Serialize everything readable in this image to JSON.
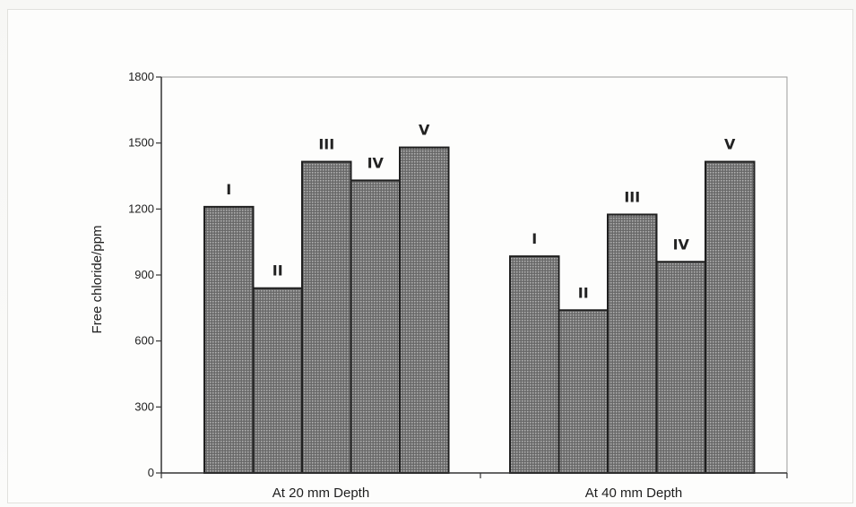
{
  "chart_data": {
    "type": "bar",
    "ylabel": "Free chloride/ppm",
    "xlabel": "",
    "ylim": [
      0,
      1800
    ],
    "yticks": [
      0,
      300,
      600,
      900,
      1200,
      1500,
      1800
    ],
    "grid": false,
    "categories": [
      "At 20 mm Depth",
      "At 40 mm Depth"
    ],
    "series": [
      {
        "name": "I",
        "values": [
          1210,
          985
        ]
      },
      {
        "name": "II",
        "values": [
          840,
          740
        ]
      },
      {
        "name": "III",
        "values": [
          1415,
          1175
        ]
      },
      {
        "name": "IV",
        "values": [
          1330,
          960
        ]
      },
      {
        "name": "V",
        "values": [
          1480,
          1415
        ]
      }
    ],
    "colors": {
      "bar_fill": "#8a8a8a",
      "bar_stroke": "#1f1f1f",
      "axis": "#333333"
    }
  }
}
